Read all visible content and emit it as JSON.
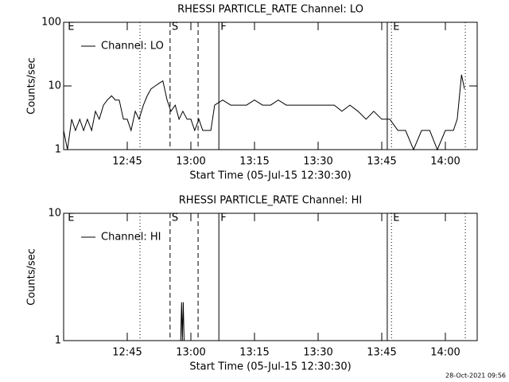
{
  "chart_data": [
    {
      "type": "line",
      "title": "RHESSI PARTICLE_RATE Channel: LO",
      "xlabel": "Start Time (05-Jul-15 12:30:30)",
      "ylabel": "Counts/sec",
      "yscale": "log",
      "ylim": [
        1,
        100
      ],
      "yticks": [
        1,
        10,
        100
      ],
      "xlim": [
        0,
        97.5
      ],
      "xticks": [
        {
          "value": 15,
          "label": "12:45"
        },
        {
          "value": 30,
          "label": "13:00"
        },
        {
          "value": 45,
          "label": "13:15"
        },
        {
          "value": 60,
          "label": "13:30"
        },
        {
          "value": 75,
          "label": "13:45"
        },
        {
          "value": 90,
          "label": "14:00"
        }
      ],
      "legend": "upper left",
      "markers": [
        {
          "x": 0.6,
          "style": "none",
          "label": "E"
        },
        {
          "x": 18,
          "style": "dotted"
        },
        {
          "x": 25.1,
          "style": "dashed",
          "label": "S"
        },
        {
          "x": 31.7,
          "style": "dashed"
        },
        {
          "x": 36.6,
          "style": "solid",
          "label": "F"
        },
        {
          "x": 76.3,
          "style": "solid"
        },
        {
          "x": 77.3,
          "style": "dotted",
          "label": "E"
        },
        {
          "x": 94.7,
          "style": "dotted"
        }
      ],
      "series": [
        {
          "name": "Channel: LO",
          "color": "#000000",
          "x": [
            0,
            0.9,
            1.9,
            2.8,
            3.8,
            4.7,
            5.6,
            6.6,
            7.5,
            8.4,
            9.4,
            10.3,
            11.3,
            12.2,
            13.1,
            14.1,
            15,
            15.9,
            16.9,
            17.8,
            18.8,
            19.7,
            20.6,
            21.6,
            22.5,
            23.4,
            24.4,
            25.3,
            26.3,
            27.2,
            28.1,
            29.1,
            30,
            30.9,
            31.9,
            32.8,
            33.8,
            34.7,
            35.6,
            37.5,
            39.4,
            41.3,
            43.1,
            45,
            46.9,
            48.8,
            50.6,
            52.5,
            54.4,
            56.3,
            58.1,
            60,
            61.9,
            63.8,
            65.6,
            67.5,
            69.4,
            71.3,
            73.1,
            75,
            76.9,
            78.8,
            80.6,
            82.5,
            84.4,
            86.3,
            88.1,
            90,
            91.9,
            92.8,
            93.8,
            94.5
          ],
          "values": [
            2,
            1,
            3,
            2,
            3,
            2,
            3,
            2,
            4,
            3,
            5,
            6,
            7,
            6,
            6,
            3,
            3,
            2,
            4,
            3,
            5,
            7,
            9,
            10,
            11,
            12,
            6,
            4,
            5,
            3,
            4,
            3,
            3,
            2,
            3,
            2,
            2,
            2,
            5,
            6,
            5,
            5,
            5,
            6,
            5,
            5,
            6,
            5,
            5,
            5,
            5,
            5,
            5,
            5,
            4,
            5,
            4,
            3,
            4,
            3,
            3,
            2,
            2,
            1,
            2,
            2,
            1,
            2,
            2,
            3,
            15,
            9
          ]
        }
      ]
    },
    {
      "type": "line",
      "title": "RHESSI PARTICLE_RATE Channel: HI",
      "xlabel": "Start Time (05-Jul-15 12:30:30)",
      "ylabel": "Counts/sec",
      "yscale": "log",
      "ylim": [
        1,
        10
      ],
      "yticks": [
        1,
        10
      ],
      "xlim": [
        0,
        97.5
      ],
      "xticks": [
        {
          "value": 15,
          "label": "12:45"
        },
        {
          "value": 30,
          "label": "13:00"
        },
        {
          "value": 45,
          "label": "13:15"
        },
        {
          "value": 60,
          "label": "13:30"
        },
        {
          "value": 75,
          "label": "13:45"
        },
        {
          "value": 90,
          "label": "14:00"
        }
      ],
      "legend": "upper left",
      "markers": [
        {
          "x": 0.6,
          "style": "none",
          "label": "E"
        },
        {
          "x": 18,
          "style": "dotted"
        },
        {
          "x": 25.1,
          "style": "dashed",
          "label": "S"
        },
        {
          "x": 31.7,
          "style": "dashed"
        },
        {
          "x": 36.6,
          "style": "solid",
          "label": "F"
        },
        {
          "x": 76.3,
          "style": "solid"
        },
        {
          "x": 77.3,
          "style": "dotted",
          "label": "E"
        },
        {
          "x": 94.7,
          "style": "dotted"
        }
      ],
      "series": [
        {
          "name": "Channel: HI",
          "color": "#000000",
          "x": [
            27.6,
            27.8,
            28.0,
            28.2,
            28.4,
            28.6
          ],
          "values": [
            1,
            2,
            1,
            2,
            1,
            1
          ]
        }
      ]
    }
  ],
  "timestamp": "28-Oct-2021 09:56"
}
